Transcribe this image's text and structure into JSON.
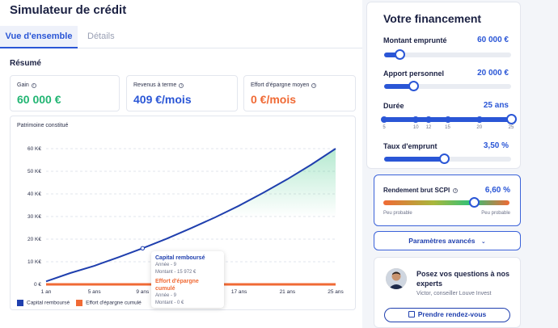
{
  "header": {
    "title": "Simulateur de crédit"
  },
  "tabs": [
    {
      "label": "Vue d'ensemble"
    },
    {
      "label": "Détails"
    }
  ],
  "summary": {
    "title": "Résumé",
    "cards": [
      {
        "label": "Gain",
        "value": "60 000 €",
        "color": "#22b573"
      },
      {
        "label": "Revenus à terme",
        "value": "409 €/mois",
        "color": "#2a56d6"
      },
      {
        "label": "Effort d'épargne moyen",
        "value": "0 €/mois",
        "color": "#f06a35"
      }
    ]
  },
  "chart": {
    "title": "Patrimoine constitué",
    "legend": [
      {
        "label": "Capital remboursé",
        "color": "#1f3fae"
      },
      {
        "label": "Effort d'épargne cumulé",
        "color": "#f06a35"
      }
    ],
    "tooltip": {
      "title1": "Capital remboursé",
      "year1": "Année - 9",
      "amount1": "Montant - 15 972 €",
      "title2": "Effort d'épargne cumulé",
      "year2": "Année - 9",
      "amount2": "Montant - 0 €"
    }
  },
  "chart_data": {
    "type": "line",
    "title": "Patrimoine constitué",
    "x": [
      1,
      3,
      5,
      7,
      9,
      11,
      13,
      15,
      17,
      19,
      21,
      23,
      25
    ],
    "series": [
      {
        "name": "Capital remboursé",
        "values": [
          1300,
          5000,
          8200,
          12000,
          15972,
          20200,
          24800,
          29600,
          34800,
          40500,
          46500,
          53000,
          60000
        ]
      },
      {
        "name": "Effort d'épargne cumulé",
        "values": [
          0,
          0,
          0,
          0,
          0,
          0,
          0,
          0,
          0,
          0,
          0,
          0,
          0
        ]
      }
    ],
    "xticks": [
      1,
      5,
      9,
      17,
      21,
      25
    ],
    "xtick_labels": [
      "1 an",
      "5 ans",
      "9 ans",
      "17 ans",
      "21 ans",
      "25 ans"
    ],
    "yticks": [
      0,
      10000,
      20000,
      30000,
      40000,
      50000,
      60000
    ],
    "ytick_labels": [
      "0 €",
      "10 K€",
      "20 K€",
      "30 K€",
      "40 K€",
      "50 K€",
      "60 K€"
    ],
    "ylim": [
      0,
      60000
    ],
    "xlim": [
      1,
      25
    ],
    "grid": true,
    "legend": "bottom-left"
  },
  "panel": {
    "title": "Votre financement",
    "rows": [
      {
        "label": "Montant emprunté",
        "value": "60 000 €",
        "fraction": 0.12
      },
      {
        "label": "Apport personnel",
        "value": "20 000 €",
        "fraction": 0.23
      },
      {
        "label": "Durée",
        "value": "25 ans",
        "fraction": 1.0,
        "ticks": [
          "5",
          "10",
          "12",
          "15",
          "20",
          "25"
        ]
      },
      {
        "label": "Taux d'emprunt",
        "value": "3,50 %",
        "fraction": 0.47
      }
    ]
  },
  "scpi": {
    "label": "Rendement brut SCPI",
    "value": "6,60 %",
    "fraction": 0.72,
    "low": "Peu probable",
    "high": "Peu probable"
  },
  "advanced": {
    "label": "Paramètres avancés"
  },
  "expert": {
    "question": "Posez vos questions à nos experts",
    "who": "Victor, conseiller Louve Invest",
    "button": "Prendre rendez-vous"
  }
}
